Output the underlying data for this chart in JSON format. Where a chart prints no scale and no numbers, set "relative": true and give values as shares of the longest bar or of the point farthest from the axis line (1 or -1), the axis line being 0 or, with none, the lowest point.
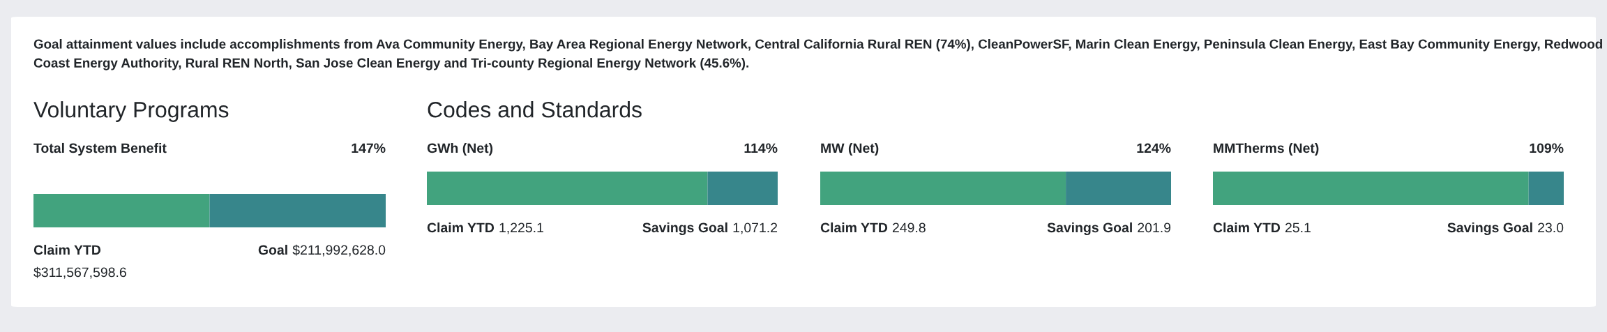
{
  "chart_data": [
    {
      "type": "bar",
      "orientation": "horizontal",
      "stacked": true,
      "relative": true,
      "subtitle": "Voluntary Programs",
      "title": "Total System Benefit",
      "categories": [
        null
      ],
      "series": [
        {
          "color": "#42a37e",
          "values": [
            0.5
          ]
        },
        {
          "color": "#37868b",
          "values": [
            0.5
          ]
        }
      ],
      "annotations": [
        "147%",
        "Claim YTD",
        "$311,567,598.6",
        "Goal",
        "$211,992,628.0",
        "Goal attainment values include accomplishments from Ava Community Energy, Bay Area Regional Energy Network, Central California Rural REN (74%), CleanPowerSF, Marin Clean Energy, Peninsula Clean Energy, East Bay Community Energy, Redwood Coast Energy Authority, Rural REN North, San Jose Clean Energy and Tri-county Regional Energy Network (45.6%)."
      ]
    },
    {
      "type": "bar",
      "orientation": "horizontal",
      "stacked": true,
      "relative": true,
      "subtitle": "Codes and Standards",
      "title": "GWh (Net)",
      "categories": [
        null
      ],
      "series": [
        {
          "color": "#42a37e",
          "values": [
            0.8
          ]
        },
        {
          "color": "#37868b",
          "values": [
            0.2
          ]
        }
      ],
      "annotations": [
        "114%",
        "Claim YTD",
        "1,225.1",
        "Savings Goal",
        "1,071.2"
      ]
    },
    {
      "type": "bar",
      "orientation": "horizontal",
      "stacked": true,
      "relative": true,
      "title": "MW (Net)",
      "categories": [
        null
      ],
      "series": [
        {
          "color": "#42a37e",
          "values": [
            0.7
          ]
        },
        {
          "color": "#37868b",
          "values": [
            0.3
          ]
        }
      ],
      "annotations": [
        "124%",
        "Claim YTD",
        "249.8",
        "Savings Goal",
        "201.9"
      ]
    },
    {
      "type": "bar",
      "orientation": "horizontal",
      "stacked": true,
      "relative": true,
      "title": "MMTherms (Net)",
      "categories": [
        null
      ],
      "series": [
        {
          "color": "#42a37e",
          "values": [
            0.9
          ]
        },
        {
          "color": "#37868b",
          "values": [
            0.1
          ]
        }
      ],
      "annotations": [
        "109%",
        "Claim YTD",
        "25.1",
        "Savings Goal",
        "23.0"
      ]
    }
  ]
}
